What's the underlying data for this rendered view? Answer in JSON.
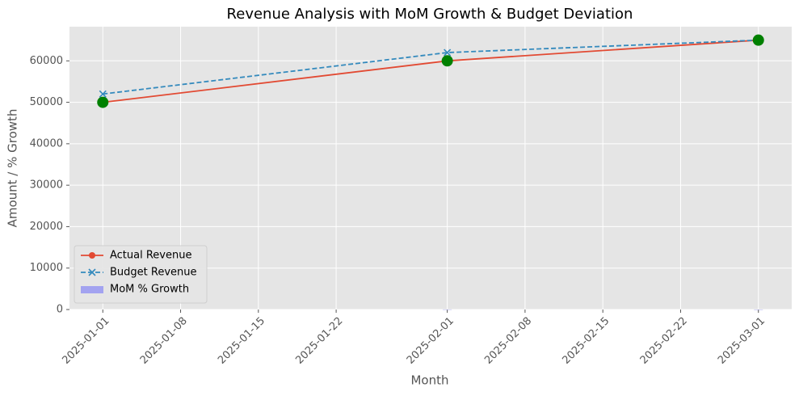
{
  "chart_data": {
    "type": "line",
    "title": "Revenue Analysis with MoM Growth & Budget Deviation",
    "x_label": "Month",
    "y_label": "Amount / % Growth",
    "x": [
      "2025-01-01",
      "2025-02-01",
      "2025-03-01"
    ],
    "series": [
      {
        "name": "Actual Revenue",
        "color": "#E24A33",
        "marker": "o",
        "linestyle": "solid",
        "values": [
          50000,
          60000,
          65000
        ]
      },
      {
        "name": "Budget Revenue",
        "color": "#348ABD",
        "marker": "x",
        "linestyle": "dashed",
        "values": [
          52000,
          62000,
          65000
        ]
      },
      {
        "name": "MoM % Growth",
        "color": "#a3a3f0",
        "kind": "bar",
        "values": [
          null,
          20,
          8.33
        ]
      }
    ],
    "highlight_color": "#008000",
    "xlim": [
      "2024-12-29",
      "2025-03-04"
    ],
    "xticks": [
      "2025-01-01",
      "2025-01-08",
      "2025-01-15",
      "2025-01-22",
      "2025-02-01",
      "2025-02-08",
      "2025-02-15",
      "2025-02-22",
      "2025-03-01"
    ],
    "ylim": [
      0,
      68250
    ],
    "yticks": [
      0,
      10000,
      20000,
      30000,
      40000,
      50000,
      60000
    ],
    "grid": true,
    "legend": "lower left"
  }
}
